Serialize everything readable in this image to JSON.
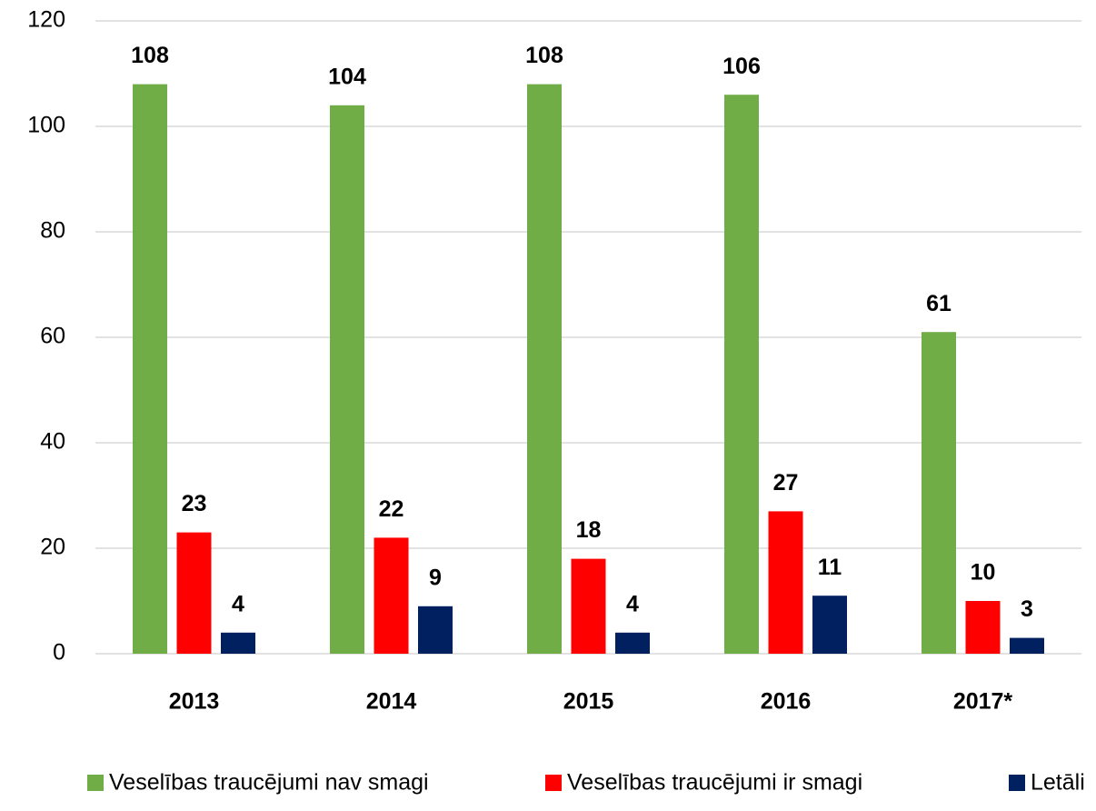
{
  "chart_data": {
    "type": "bar",
    "categories": [
      "2013",
      "2014",
      "2015",
      "2016",
      "2017*"
    ],
    "series": [
      {
        "name": "Veselības traucējumi nav smagi",
        "color": "#70ad47",
        "values": [
          108,
          104,
          108,
          106,
          61
        ]
      },
      {
        "name": "Veselības traucējumi ir smagi",
        "color": "#ff0000",
        "values": [
          23,
          22,
          18,
          27,
          10
        ]
      },
      {
        "name": "Letāli",
        "color": "#002060",
        "values": [
          4,
          9,
          4,
          11,
          3
        ]
      }
    ],
    "ylim": [
      0,
      120
    ],
    "yticks": [
      0,
      20,
      40,
      60,
      80,
      100,
      120
    ],
    "grid": true,
    "legend": "bottom"
  }
}
